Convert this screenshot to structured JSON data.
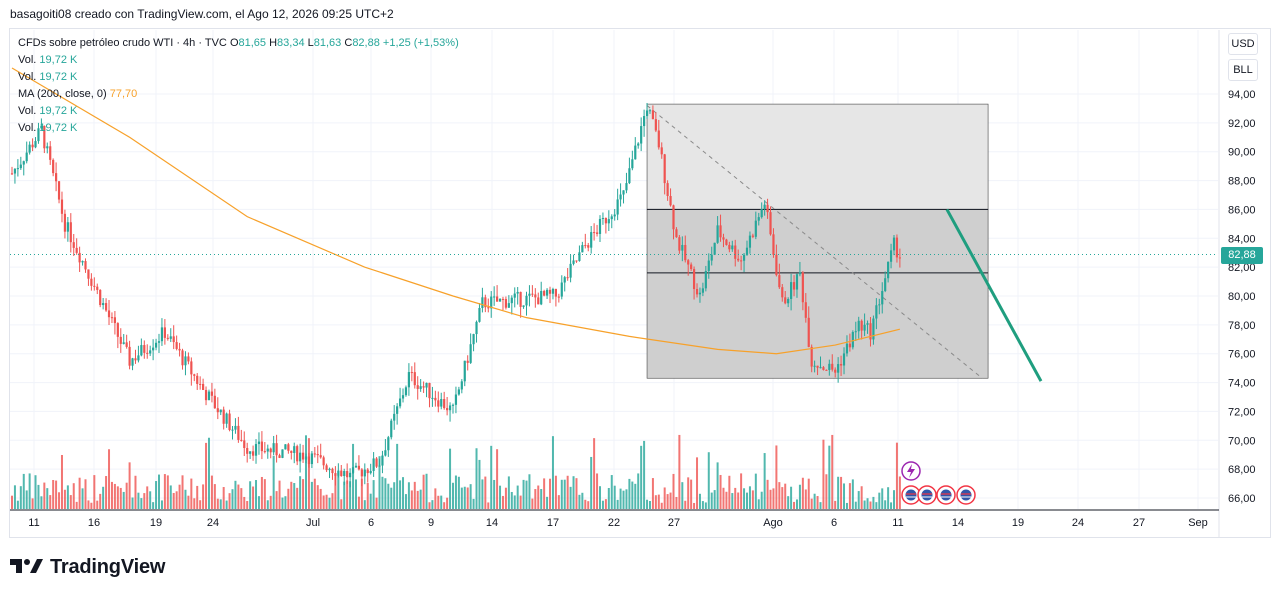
{
  "header": {
    "byline": "basagoiti08 creado con TradingView.com, el Ago 12, 2026 09:25 UTC+2"
  },
  "legend": {
    "symbol": "CFDs sobre petróleo crudo WTI · 4h · TVC",
    "o_label": "O",
    "o_value": "81,65",
    "h_label": "H",
    "h_value": "83,34",
    "l_label": "L",
    "l_value": "81,63",
    "c_label": "C",
    "c_value": "82,88",
    "change": "+1,25 (+1,53%)",
    "vol_label": "Vol.",
    "vol_value": "19,72 K",
    "ma_label": "MA (200, close, 0)",
    "ma_value": "77,70"
  },
  "price_scale": {
    "currency": "USD",
    "unit": "BLL",
    "last_price": "82,88"
  },
  "brand": {
    "name": "TradingView"
  },
  "colors": {
    "up": "#26a69a",
    "down": "#ef5350",
    "ma": "#f7a12a",
    "trend": "#1f9e7f",
    "price_line": "#26a69a"
  },
  "chart_data": {
    "type": "candlestick",
    "symbol": "CFDs sobre petróleo crudo WTI",
    "interval": "4h",
    "ylim": [
      65,
      96
    ],
    "y_ticks": [
      "66,00",
      "68,00",
      "70,00",
      "72,00",
      "74,00",
      "76,00",
      "78,00",
      "80,00",
      "82,00",
      "84,00",
      "86,00",
      "88,00",
      "90,00",
      "92,00",
      "94,00"
    ],
    "y_tick_values": [
      66,
      68,
      70,
      72,
      74,
      76,
      78,
      80,
      82,
      84,
      86,
      88,
      90,
      92,
      94
    ],
    "x_ticks": [
      "11",
      "16",
      "19",
      "24",
      "Jul",
      "6",
      "9",
      "14",
      "17",
      "22",
      "27",
      "Ago",
      "6",
      "11",
      "14",
      "19",
      "24",
      "27",
      "Sep"
    ],
    "price_anchors": [
      {
        "t": 0,
        "p": 88.5
      },
      {
        "t": 10,
        "p": 91.5
      },
      {
        "t": 18,
        "p": 85.0
      },
      {
        "t": 25,
        "p": 82.0
      },
      {
        "t": 40,
        "p": 75.5
      },
      {
        "t": 52,
        "p": 77.5
      },
      {
        "t": 65,
        "p": 73.5
      },
      {
        "t": 80,
        "p": 69.5
      },
      {
        "t": 100,
        "p": 69.0
      },
      {
        "t": 115,
        "p": 67.5
      },
      {
        "t": 125,
        "p": 68.5
      },
      {
        "t": 135,
        "p": 74.5
      },
      {
        "t": 150,
        "p": 72.0
      },
      {
        "t": 160,
        "p": 79.5
      },
      {
        "t": 175,
        "p": 79.8
      },
      {
        "t": 185,
        "p": 80.0
      },
      {
        "t": 195,
        "p": 83.5
      },
      {
        "t": 208,
        "p": 87.0
      },
      {
        "t": 216,
        "p": 93.2
      },
      {
        "t": 220,
        "p": 90.5
      },
      {
        "t": 226,
        "p": 84.0
      },
      {
        "t": 234,
        "p": 80.0
      },
      {
        "t": 240,
        "p": 84.5
      },
      {
        "t": 248,
        "p": 82.5
      },
      {
        "t": 256,
        "p": 86.5
      },
      {
        "t": 262,
        "p": 79.5
      },
      {
        "t": 268,
        "p": 81.5
      },
      {
        "t": 272,
        "p": 75.5
      },
      {
        "t": 280,
        "p": 74.8
      },
      {
        "t": 288,
        "p": 78.0
      },
      {
        "t": 292,
        "p": 77.5
      },
      {
        "t": 300,
        "p": 83.5
      },
      {
        "t": 302,
        "p": 82.88
      }
    ],
    "ma200": [
      {
        "t": 0,
        "p": 95.8
      },
      {
        "t": 40,
        "p": 91.0
      },
      {
        "t": 80,
        "p": 85.5
      },
      {
        "t": 120,
        "p": 82.0
      },
      {
        "t": 150,
        "p": 80.0
      },
      {
        "t": 175,
        "p": 78.5
      },
      {
        "t": 210,
        "p": 77.2
      },
      {
        "t": 240,
        "p": 76.3
      },
      {
        "t": 260,
        "p": 76.0
      },
      {
        "t": 280,
        "p": 76.6
      },
      {
        "t": 302,
        "p": 77.7
      }
    ],
    "zone": {
      "t_start": 216,
      "t_end": 332,
      "upper": 93.3,
      "lower": 74.3
    },
    "levels": [
      86.0,
      81.6
    ],
    "diagonal": {
      "t1": 216,
      "p1": 93.2,
      "t2": 330,
      "p2": 74.3
    },
    "projection": {
      "t1": 318,
      "p1": 86.0,
      "t2": 350,
      "p2": 74.1
    },
    "last_close": 82.88,
    "total_bars": 303
  }
}
